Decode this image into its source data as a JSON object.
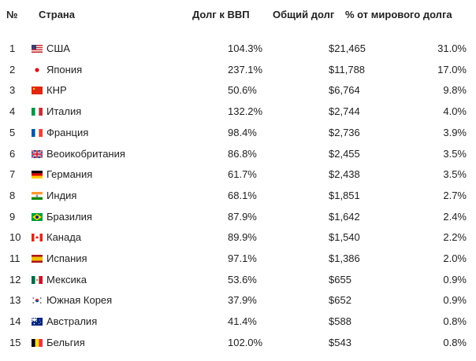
{
  "headers": {
    "num": "№",
    "country": "Страна",
    "ratio": "Долг к ВВП",
    "debt": "Общий долг",
    "share": "% от мирового долга"
  },
  "rows": [
    {
      "num": "1",
      "flag": "us-flag-icon",
      "country": "США",
      "ratio": "104.3%",
      "debt": "$21,465",
      "share": "31.0%"
    },
    {
      "num": "2",
      "flag": "japan-flag-icon",
      "country": "Япония",
      "ratio": "237.1%",
      "debt": "$11,788",
      "share": "17.0%"
    },
    {
      "num": "3",
      "flag": "china-flag-icon",
      "country": "КНР",
      "ratio": "50.6%",
      "debt": "$6,764",
      "share": "9.8%"
    },
    {
      "num": "4",
      "flag": "italy-flag-icon",
      "country": "Италия",
      "ratio": "132.2%",
      "debt": "$2,744",
      "share": "4.0%"
    },
    {
      "num": "5",
      "flag": "france-flag-icon",
      "country": "Франция",
      "ratio": "98.4%",
      "debt": "$2,736",
      "share": "3.9%"
    },
    {
      "num": "6",
      "flag": "uk-flag-icon",
      "country": "Веоикобритания",
      "ratio": "86.8%",
      "debt": "$2,455",
      "share": "3.5%"
    },
    {
      "num": "7",
      "flag": "germany-flag-icon",
      "country": "Германия",
      "ratio": "61.7%",
      "debt": "$2,438",
      "share": "3.5%"
    },
    {
      "num": "8",
      "flag": "india-flag-icon",
      "country": "Индия",
      "ratio": "68.1%",
      "debt": "$1,851",
      "share": "2.7%"
    },
    {
      "num": "9",
      "flag": "brazil-flag-icon",
      "country": "Бразилия",
      "ratio": "87.9%",
      "debt": "$1,642",
      "share": "2.4%"
    },
    {
      "num": "10",
      "flag": "canada-flag-icon",
      "country": "Канада",
      "ratio": "89.9%",
      "debt": "$1,540",
      "share": "2.2%"
    },
    {
      "num": "11",
      "flag": "spain-flag-icon",
      "country": "Испания",
      "ratio": "97.1%",
      "debt": "$1,386",
      "share": "2.0%"
    },
    {
      "num": "12",
      "flag": "mexico-flag-icon",
      "country": "Мексика",
      "ratio": "53.6%",
      "debt": "$655",
      "share": "0.9%"
    },
    {
      "num": "13",
      "flag": "south-korea-flag-icon",
      "country": "Южная Корея",
      "ratio": "37.9%",
      "debt": "$652",
      "share": "0.9%"
    },
    {
      "num": "14",
      "flag": "australia-flag-icon",
      "country": "Австралия",
      "ratio": "41.4%",
      "debt": "$588",
      "share": "0.8%"
    },
    {
      "num": "15",
      "flag": "belgium-flag-icon",
      "country": "Бельгия",
      "ratio": "102.0%",
      "debt": "$543",
      "share": "0.8%"
    }
  ]
}
